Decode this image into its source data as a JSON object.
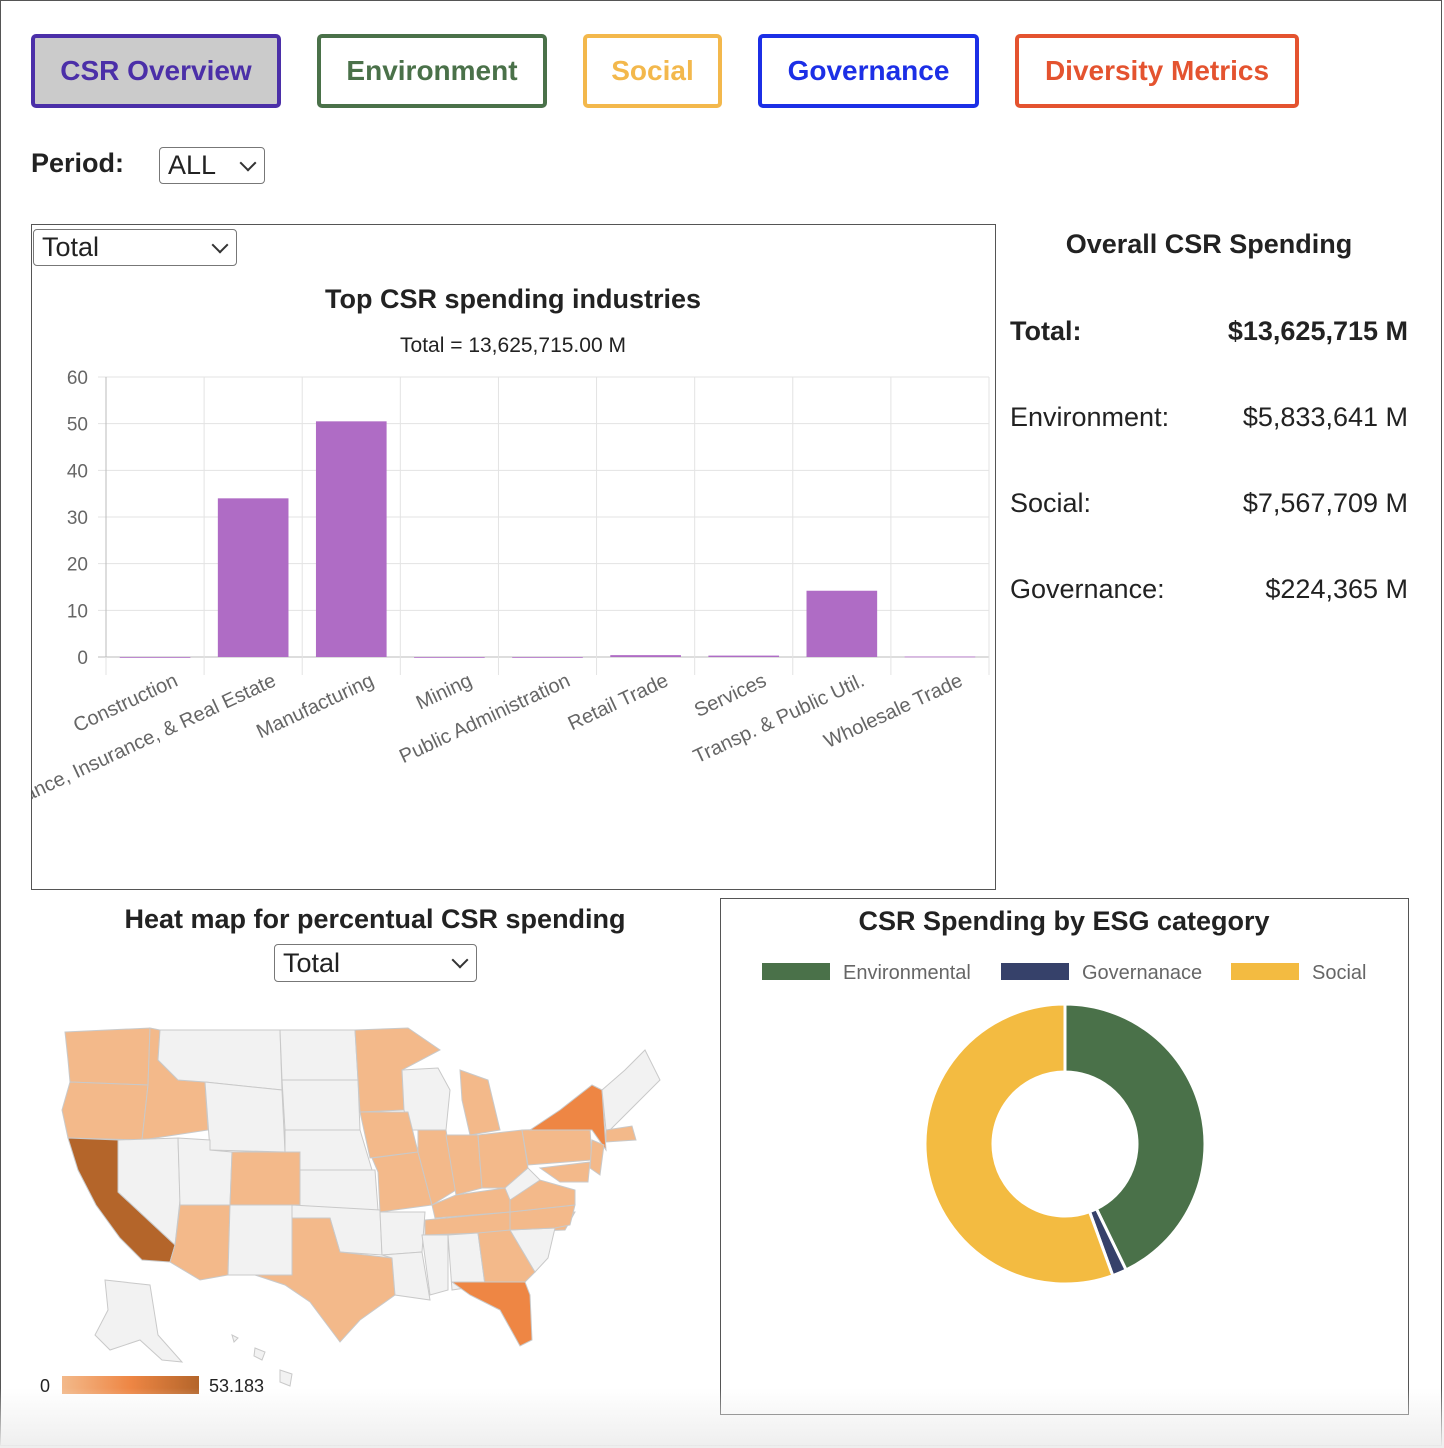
{
  "tabs": [
    {
      "label": "CSR Overview",
      "color": "#4b2fa8",
      "bg": "#cbcbcb"
    },
    {
      "label": "Environment",
      "color": "#4a7149",
      "bg": "#ffffff"
    },
    {
      "label": "Social",
      "color": "#f3b84c",
      "bg": "#ffffff"
    },
    {
      "label": "Governance",
      "color": "#1c2fe6",
      "bg": "#ffffff"
    },
    {
      "label": "Diversity Metrics",
      "color": "#e4532f",
      "bg": "#ffffff"
    }
  ],
  "period": {
    "label": "Period:",
    "value": "ALL"
  },
  "industry_chart": {
    "selector": "Total",
    "title": "Top CSR spending industries",
    "subtitle": "Total = 13,625,715.00 M"
  },
  "summary": {
    "title": "Overall CSR Spending",
    "rows": [
      {
        "label": "Total:",
        "value": "$13,625,715 M"
      },
      {
        "label": "Environment:",
        "value": "$5,833,641 M"
      },
      {
        "label": "Social:",
        "value": "$7,567,709 M"
      },
      {
        "label": "Governance:",
        "value": "$224,365 M"
      }
    ]
  },
  "heatmap": {
    "title": "Heat map for percentual CSR spending",
    "selector": "Total",
    "legend_min": "0",
    "legend_max": "53.183"
  },
  "donut": {
    "title": "CSR Spending by ESG category"
  },
  "colors": {
    "bar": "#af6cc5",
    "env": "#4a7149",
    "gov": "#36416a",
    "soc": "#f3bb41",
    "heat_low": "#f3b98a",
    "heat_mid": "#ee8644",
    "heat_high": "#b4652a",
    "heat_none": "#f2f2f2"
  },
  "chart_data": [
    {
      "type": "bar",
      "title": "Top CSR spending industries",
      "subtitle": "Total = 13,625,715.00 M",
      "categories": [
        "Construction",
        "Finance, Insurance, & Real Estate",
        "Manufacturing",
        "Mining",
        "Public Administration",
        "Retail Trade",
        "Services",
        "Transp. & Public Util.",
        "Wholesale Trade"
      ],
      "values": [
        0,
        34,
        50.5,
        0,
        0,
        0.4,
        0.3,
        14.2,
        0.1
      ],
      "ylim": [
        0,
        60
      ],
      "yticks": [
        0,
        10,
        20,
        30,
        40,
        50,
        60
      ],
      "grid": true,
      "xlabel": "",
      "ylabel": ""
    },
    {
      "type": "pie",
      "title": "CSR Spending by ESG category",
      "labels": [
        "Environmental",
        "Governanace",
        "Social"
      ],
      "values": [
        5833641,
        224365,
        7567709
      ],
      "legend": "top"
    }
  ]
}
